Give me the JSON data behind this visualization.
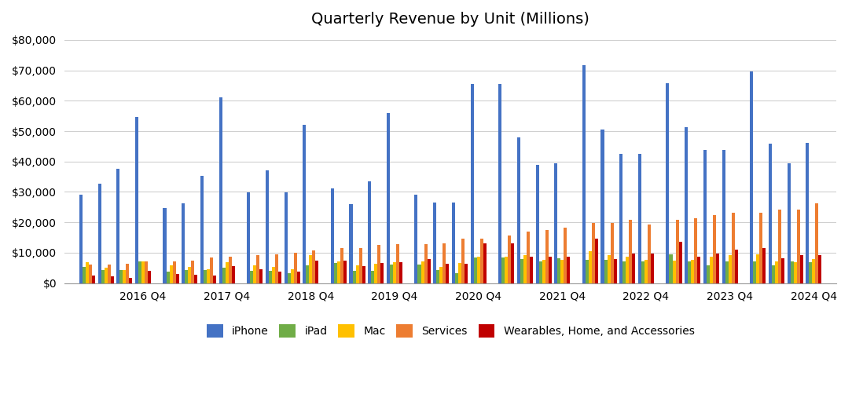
{
  "title": "Quarterly Revenue by Unit (Millions)",
  "iPhone": [
    28974,
    32696,
    37510,
    54755,
    24769,
    26311,
    35321,
    61104,
    29906,
    37185,
    29906,
    51982,
    31051,
    25986,
    33362,
    55957,
    28961,
    26418,
    26444,
    65597,
    65596,
    47938,
    38868,
    39336,
    71628,
    50570,
    42626,
    42627,
    65775,
    51334,
    43805,
    43806,
    69702,
    45963,
    39296,
    46222
  ],
  "iPad": [
    5415,
    4413,
    4286,
    7085,
    3889,
    4174,
    4256,
    5057,
    4113,
    4088,
    3234,
    5948,
    6729,
    4087,
    4066,
    6128,
    5977,
    4311,
    3162,
    8435,
    8435,
    7812,
    7174,
    8252,
    7646,
    7646,
    7174,
    7174,
    9396,
    7017,
    5791,
    7023,
    7023,
    5791,
    7020,
    6954
  ],
  "Mac": [
    6746,
    5107,
    4312,
    7244,
    5844,
    5218,
    4459,
    6895,
    5741,
    5330,
    4440,
    9177,
    7160,
    5818,
    6273,
    6995,
    7160,
    5351,
    6582,
    8675,
    8675,
    9146,
    7756,
    7740,
    10435,
    9154,
    8701,
    7614,
    7382,
    7614,
    8701,
    9154,
    9435,
    7171,
    6841,
    7783
  ],
  "Services": [
    6062,
    5990,
    6327,
    7177,
    7041,
    7266,
    8501,
    8710,
    9129,
    9548,
    9981,
    10875,
    11450,
    11455,
    12510,
    12715,
    12715,
    13156,
    14549,
    14550,
    15761,
    16899,
    17486,
    18277,
    19821,
    19821,
    20766,
    19188,
    20907,
    21213,
    22314,
    23118,
    23118,
    24210,
    24213,
    26342
  ],
  "Wearables": [
    2479,
    2106,
    1802,
    4001,
    2905,
    2651,
    2380,
    5482,
    4491,
    3740,
    3740,
    7308,
    7308,
    5533,
    6521,
    6829,
    7875,
    6290,
    6454,
    12966,
    12966,
    8757,
    8757,
    8756,
    14701,
    8015,
    9650,
    9650,
    13482,
    8757,
    9650,
    10981,
    11560,
    8284,
    9320,
    9273
  ],
  "colors": {
    "iPhone": "#4472C4",
    "iPad": "#70AD47",
    "Mac": "#FFC000",
    "Services": "#ED7D31",
    "Wearables": "#C00000"
  },
  "tick_labels": [
    "2016 Q4",
    "2017 Q4",
    "2018 Q4",
    "2019 Q4",
    "2020 Q4",
    "2021 Q4",
    "2022 Q4",
    "2023 Q4",
    "2024 Q4"
  ],
  "ylim": [
    0,
    80000
  ],
  "yticks": [
    0,
    10000,
    20000,
    30000,
    40000,
    50000,
    60000,
    70000,
    80000
  ],
  "background_color": "#ffffff",
  "grid_color": "#d0d0d0"
}
